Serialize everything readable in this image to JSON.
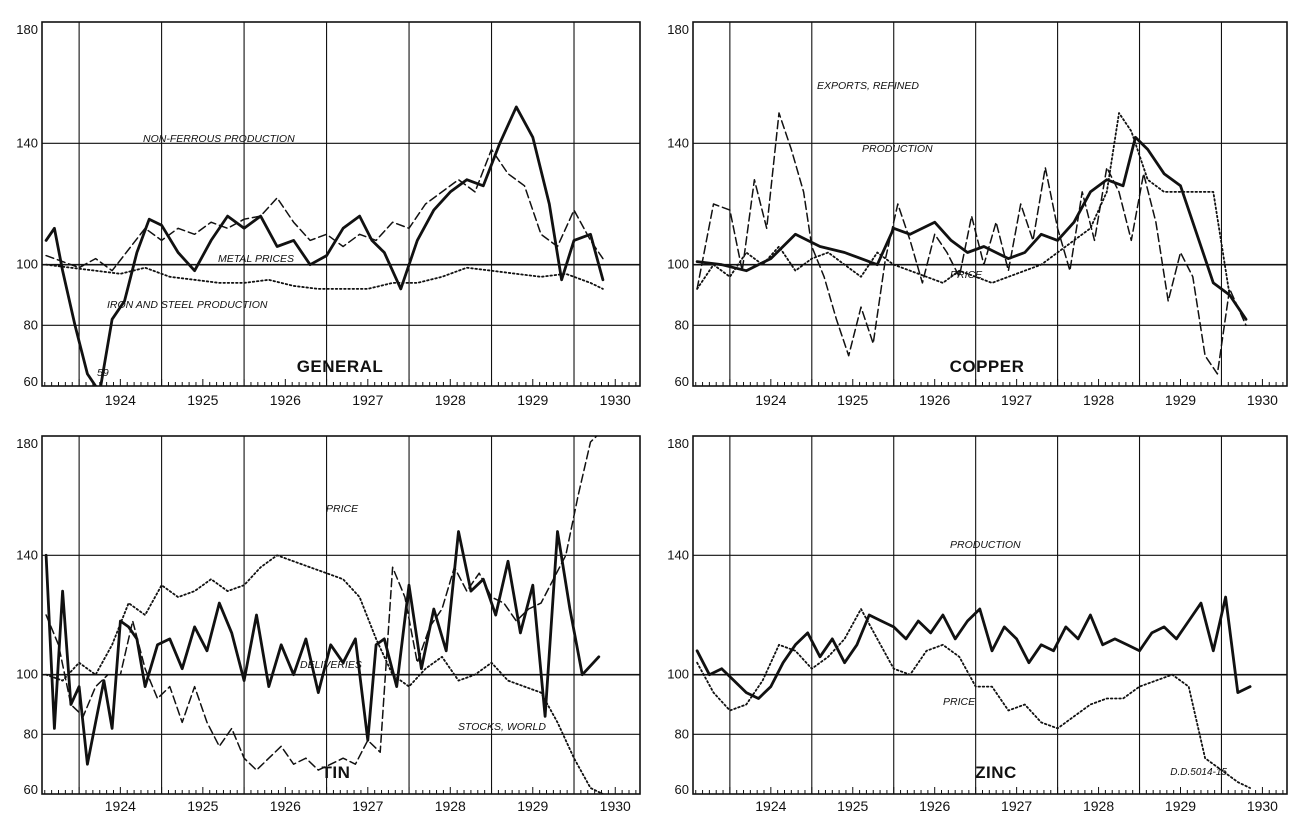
{
  "chart_data": [
    {
      "id": "general",
      "type": "line",
      "title": "GENERAL",
      "ylim": [
        60,
        180
      ],
      "yticks": [
        60,
        80,
        100,
        140,
        180
      ],
      "x_categories": [
        "1924",
        "1925",
        "1926",
        "1927",
        "1928",
        "1929",
        "1930"
      ],
      "xlim": [
        1923.55,
        1930.8
      ],
      "grid": true,
      "series": [
        {
          "name": "IRON AND STEEL PRODUCTION",
          "style": "solid",
          "x": [
            1923.6,
            1923.7,
            1923.8,
            1923.95,
            1924.1,
            1924.25,
            1924.4,
            1924.55,
            1924.7,
            1924.85,
            1925.0,
            1925.2,
            1925.4,
            1925.6,
            1925.8,
            1926.0,
            1926.2,
            1926.4,
            1926.6,
            1926.8,
            1927.0,
            1927.2,
            1927.4,
            1927.55,
            1927.7,
            1927.9,
            1928.1,
            1928.3,
            1928.5,
            1928.7,
            1928.9,
            1929.1,
            1929.3,
            1929.5,
            1929.7,
            1929.85,
            1930.0,
            1930.2,
            1930.35
          ],
          "y": [
            108,
            112,
            98,
            80,
            64,
            58,
            82,
            88,
            104,
            115,
            113,
            104,
            98,
            108,
            116,
            112,
            116,
            106,
            108,
            100,
            103,
            112,
            116,
            108,
            104,
            92,
            108,
            118,
            124,
            128,
            126,
            140,
            152,
            142,
            120,
            95,
            108,
            110,
            95
          ]
        },
        {
          "name": "NON-FERROUS PRODUCTION",
          "style": "dashed",
          "x": [
            1923.6,
            1923.8,
            1924.0,
            1924.2,
            1924.4,
            1924.6,
            1924.8,
            1925.0,
            1925.2,
            1925.4,
            1925.6,
            1925.8,
            1926.0,
            1926.2,
            1926.4,
            1926.6,
            1926.8,
            1927.0,
            1927.2,
            1927.4,
            1927.6,
            1927.8,
            1928.0,
            1928.2,
            1928.4,
            1928.6,
            1928.8,
            1929.0,
            1929.2,
            1929.4,
            1929.6,
            1929.8,
            1930.0,
            1930.2,
            1930.35
          ],
          "y": [
            103,
            101,
            99,
            102,
            98,
            105,
            112,
            108,
            112,
            110,
            114,
            112,
            115,
            116,
            122,
            114,
            108,
            110,
            106,
            110,
            108,
            114,
            112,
            120,
            124,
            128,
            124,
            138,
            130,
            126,
            110,
            106,
            118,
            108,
            102
          ]
        },
        {
          "name": "METAL PRICES",
          "style": "dotted",
          "x": [
            1923.6,
            1923.9,
            1924.2,
            1924.5,
            1924.8,
            1925.1,
            1925.4,
            1925.7,
            1926.0,
            1926.3,
            1926.6,
            1926.9,
            1927.2,
            1927.5,
            1927.8,
            1928.1,
            1928.4,
            1928.7,
            1929.0,
            1929.3,
            1929.6,
            1929.9,
            1930.2,
            1930.35
          ],
          "y": [
            100,
            99,
            98,
            97,
            99,
            96,
            95,
            94,
            94,
            95,
            93,
            92,
            92,
            92,
            94,
            94,
            96,
            99,
            98,
            97,
            96,
            97,
            94,
            92
          ]
        }
      ],
      "annotations": [
        "NON-FERROUS PRODUCTION",
        "METAL PRICES",
        "IRON AND STEEL PRODUCTION",
        "59"
      ]
    },
    {
      "id": "copper",
      "type": "line",
      "title": "COPPER",
      "ylim": [
        60,
        180
      ],
      "yticks": [
        60,
        80,
        100,
        140,
        180
      ],
      "x_categories": [
        "1924",
        "1925",
        "1926",
        "1927",
        "1928",
        "1929",
        "1930"
      ],
      "xlim": [
        1923.55,
        1930.8
      ],
      "grid": true,
      "series": [
        {
          "name": "PRODUCTION",
          "style": "solid",
          "x": [
            1923.6,
            1923.9,
            1924.2,
            1924.5,
            1924.8,
            1925.1,
            1925.4,
            1925.6,
            1925.8,
            1926.0,
            1926.2,
            1926.5,
            1926.7,
            1926.9,
            1927.1,
            1927.4,
            1927.6,
            1927.8,
            1928.0,
            1928.2,
            1928.4,
            1928.6,
            1928.8,
            1928.95,
            1929.1,
            1929.3,
            1929.5,
            1929.7,
            1929.9,
            1930.1,
            1930.3
          ],
          "y": [
            101,
            100,
            98,
            102,
            110,
            106,
            104,
            102,
            100,
            112,
            110,
            114,
            108,
            104,
            106,
            102,
            104,
            110,
            108,
            114,
            124,
            128,
            126,
            142,
            138,
            130,
            126,
            110,
            94,
            90,
            82
          ]
        },
        {
          "name": "EXPORTS, REFINED",
          "style": "dashed",
          "x": [
            1923.6,
            1923.8,
            1924.0,
            1924.15,
            1924.3,
            1924.45,
            1924.6,
            1924.75,
            1924.9,
            1925.0,
            1925.15,
            1925.3,
            1925.45,
            1925.6,
            1925.75,
            1925.9,
            1926.05,
            1926.2,
            1926.35,
            1926.5,
            1926.65,
            1926.8,
            1926.95,
            1927.1,
            1927.25,
            1927.4,
            1927.55,
            1927.7,
            1927.85,
            1928.0,
            1928.15,
            1928.3,
            1928.45,
            1928.6,
            1928.75,
            1928.9,
            1929.05,
            1929.2,
            1929.35,
            1929.5,
            1929.65,
            1929.8,
            1929.95,
            1930.1,
            1930.3
          ],
          "y": [
            92,
            120,
            118,
            98,
            128,
            112,
            150,
            138,
            124,
            106,
            96,
            82,
            70,
            86,
            74,
            102,
            120,
            108,
            94,
            110,
            104,
            96,
            116,
            100,
            114,
            98,
            120,
            108,
            132,
            112,
            98,
            124,
            108,
            132,
            124,
            108,
            130,
            114,
            88,
            104,
            96,
            70,
            64,
            92,
            80
          ]
        },
        {
          "name": "PRICE",
          "style": "dotted",
          "x": [
            1923.6,
            1923.8,
            1924.0,
            1924.2,
            1924.4,
            1924.6,
            1924.8,
            1925.0,
            1925.2,
            1925.4,
            1925.6,
            1925.8,
            1926.0,
            1926.2,
            1926.4,
            1926.6,
            1926.8,
            1927.0,
            1927.2,
            1927.4,
            1927.6,
            1927.8,
            1928.0,
            1928.2,
            1928.4,
            1928.6,
            1928.75,
            1928.9,
            1929.1,
            1929.3,
            1929.5,
            1929.7,
            1929.9,
            1930.1,
            1930.3
          ],
          "y": [
            92,
            100,
            96,
            104,
            100,
            106,
            98,
            102,
            104,
            100,
            96,
            104,
            100,
            98,
            96,
            94,
            98,
            96,
            94,
            96,
            98,
            100,
            104,
            108,
            112,
            124,
            150,
            144,
            128,
            124,
            124,
            124,
            124,
            90,
            82
          ]
        }
      ],
      "annotations": [
        "EXPORTS, REFINED",
        "PRODUCTION",
        "PRICE"
      ]
    },
    {
      "id": "tin",
      "type": "line",
      "title": "TIN",
      "ylim": [
        60,
        180
      ],
      "yticks": [
        60,
        80,
        100,
        140,
        180
      ],
      "x_categories": [
        "1924",
        "1925",
        "1926",
        "1927",
        "1928",
        "1929",
        "1930"
      ],
      "xlim": [
        1923.55,
        1930.8
      ],
      "grid": true,
      "series": [
        {
          "name": "DELIVERIES",
          "style": "solid",
          "x": [
            1923.6,
            1923.7,
            1923.8,
            1923.9,
            1924.0,
            1924.1,
            1924.2,
            1924.3,
            1924.4,
            1924.5,
            1924.6,
            1924.7,
            1924.8,
            1924.95,
            1925.1,
            1925.25,
            1925.4,
            1925.55,
            1925.7,
            1925.85,
            1926.0,
            1926.15,
            1926.3,
            1926.45,
            1926.6,
            1926.75,
            1926.9,
            1927.05,
            1927.2,
            1927.35,
            1927.5,
            1927.6,
            1927.7,
            1927.85,
            1928.0,
            1928.15,
            1928.3,
            1928.45,
            1928.6,
            1928.75,
            1928.9,
            1929.05,
            1929.2,
            1929.35,
            1929.5,
            1929.65,
            1929.8,
            1929.95,
            1930.1,
            1930.3
          ],
          "y": [
            140,
            82,
            128,
            90,
            96,
            70,
            84,
            98,
            82,
            118,
            116,
            112,
            96,
            110,
            112,
            102,
            116,
            108,
            124,
            114,
            98,
            120,
            96,
            110,
            100,
            112,
            94,
            110,
            104,
            112,
            78,
            110,
            112,
            96,
            130,
            102,
            122,
            108,
            148,
            128,
            132,
            120,
            138,
            114,
            130,
            86,
            148,
            122,
            100,
            106
          ]
        },
        {
          "name": "STOCKS, WORLD",
          "style": "dashed",
          "x": [
            1923.6,
            1923.75,
            1923.9,
            1924.05,
            1924.2,
            1924.35,
            1924.5,
            1924.65,
            1924.8,
            1924.95,
            1925.1,
            1925.25,
            1925.4,
            1925.55,
            1925.7,
            1925.85,
            1926.0,
            1926.15,
            1926.3,
            1926.45,
            1926.6,
            1926.75,
            1926.9,
            1927.05,
            1927.2,
            1927.35,
            1927.5,
            1927.65,
            1927.8,
            1927.95,
            1928.1,
            1928.25,
            1928.4,
            1928.55,
            1928.7,
            1928.85,
            1929.0,
            1929.15,
            1929.3,
            1929.45,
            1929.6,
            1929.75,
            1929.9,
            1930.05,
            1930.2,
            1930.35
          ],
          "y": [
            120,
            110,
            90,
            86,
            96,
            100,
            100,
            118,
            102,
            92,
            96,
            84,
            96,
            84,
            76,
            82,
            72,
            68,
            72,
            76,
            70,
            72,
            68,
            70,
            72,
            70,
            78,
            74,
            136,
            126,
            104,
            116,
            122,
            136,
            128,
            134,
            126,
            124,
            118,
            122,
            124,
            132,
            140,
            160,
            178,
            182
          ]
        },
        {
          "name": "PRICE",
          "style": "dotted",
          "x": [
            1923.6,
            1923.8,
            1924.0,
            1924.2,
            1924.4,
            1924.6,
            1924.8,
            1925.0,
            1925.2,
            1925.4,
            1925.6,
            1925.8,
            1926.0,
            1926.2,
            1926.4,
            1926.6,
            1926.8,
            1927.0,
            1927.2,
            1927.4,
            1927.6,
            1927.8,
            1928.0,
            1928.2,
            1928.4,
            1928.6,
            1928.8,
            1929.0,
            1929.2,
            1929.4,
            1929.6,
            1929.8,
            1930.0,
            1930.2,
            1930.35
          ],
          "y": [
            100,
            98,
            104,
            100,
            110,
            124,
            120,
            130,
            126,
            128,
            132,
            128,
            130,
            136,
            140,
            138,
            136,
            134,
            132,
            126,
            112,
            100,
            96,
            102,
            106,
            98,
            100,
            104,
            98,
            96,
            94,
            84,
            72,
            62,
            60
          ]
        }
      ],
      "annotations": [
        "PRICE",
        "DELIVERIES",
        "STOCKS, WORLD"
      ]
    },
    {
      "id": "zinc",
      "type": "line",
      "title": "ZINC",
      "ylim": [
        60,
        180
      ],
      "yticks": [
        60,
        80,
        100,
        140,
        180
      ],
      "x_categories": [
        "1924",
        "1925",
        "1926",
        "1927",
        "1928",
        "1929",
        "1930"
      ],
      "xlim": [
        1923.55,
        1930.8
      ],
      "grid": true,
      "series": [
        {
          "name": "PRODUCTION",
          "style": "solid",
          "x": [
            1923.6,
            1923.75,
            1923.9,
            1924.05,
            1924.2,
            1924.35,
            1924.5,
            1924.65,
            1924.8,
            1924.95,
            1925.1,
            1925.25,
            1925.4,
            1925.55,
            1925.7,
            1925.85,
            1926.0,
            1926.15,
            1926.3,
            1926.45,
            1926.6,
            1926.75,
            1926.9,
            1927.05,
            1927.2,
            1927.35,
            1927.5,
            1927.65,
            1927.8,
            1927.95,
            1928.1,
            1928.25,
            1928.4,
            1928.55,
            1928.7,
            1928.85,
            1929.0,
            1929.15,
            1929.3,
            1929.45,
            1929.6,
            1929.75,
            1929.9,
            1930.05,
            1930.2,
            1930.35
          ],
          "y": [
            108,
            100,
            102,
            98,
            94,
            92,
            96,
            104,
            110,
            114,
            106,
            112,
            104,
            110,
            120,
            118,
            116,
            112,
            118,
            114,
            120,
            112,
            118,
            122,
            108,
            116,
            112,
            104,
            110,
            108,
            116,
            112,
            120,
            110,
            112,
            110,
            108,
            114,
            116,
            112,
            118,
            124,
            108,
            126,
            94,
            96
          ]
        },
        {
          "name": "PRICE",
          "style": "dotted",
          "x": [
            1923.6,
            1923.8,
            1924.0,
            1924.2,
            1924.4,
            1924.6,
            1924.8,
            1925.0,
            1925.2,
            1925.4,
            1925.6,
            1925.8,
            1926.0,
            1926.2,
            1926.4,
            1926.6,
            1926.8,
            1927.0,
            1927.2,
            1927.4,
            1927.6,
            1927.8,
            1928.0,
            1928.2,
            1928.4,
            1928.6,
            1928.8,
            1929.0,
            1929.2,
            1929.4,
            1929.6,
            1929.8,
            1930.0,
            1930.2,
            1930.35
          ],
          "y": [
            104,
            94,
            88,
            90,
            98,
            110,
            108,
            102,
            106,
            112,
            122,
            112,
            102,
            100,
            108,
            110,
            106,
            96,
            96,
            88,
            90,
            84,
            82,
            86,
            90,
            92,
            92,
            96,
            98,
            100,
            96,
            72,
            68,
            64,
            62
          ]
        }
      ],
      "annotations": [
        "PRODUCTION",
        "PRICE"
      ]
    }
  ],
  "credit": "D.D.5014-15"
}
